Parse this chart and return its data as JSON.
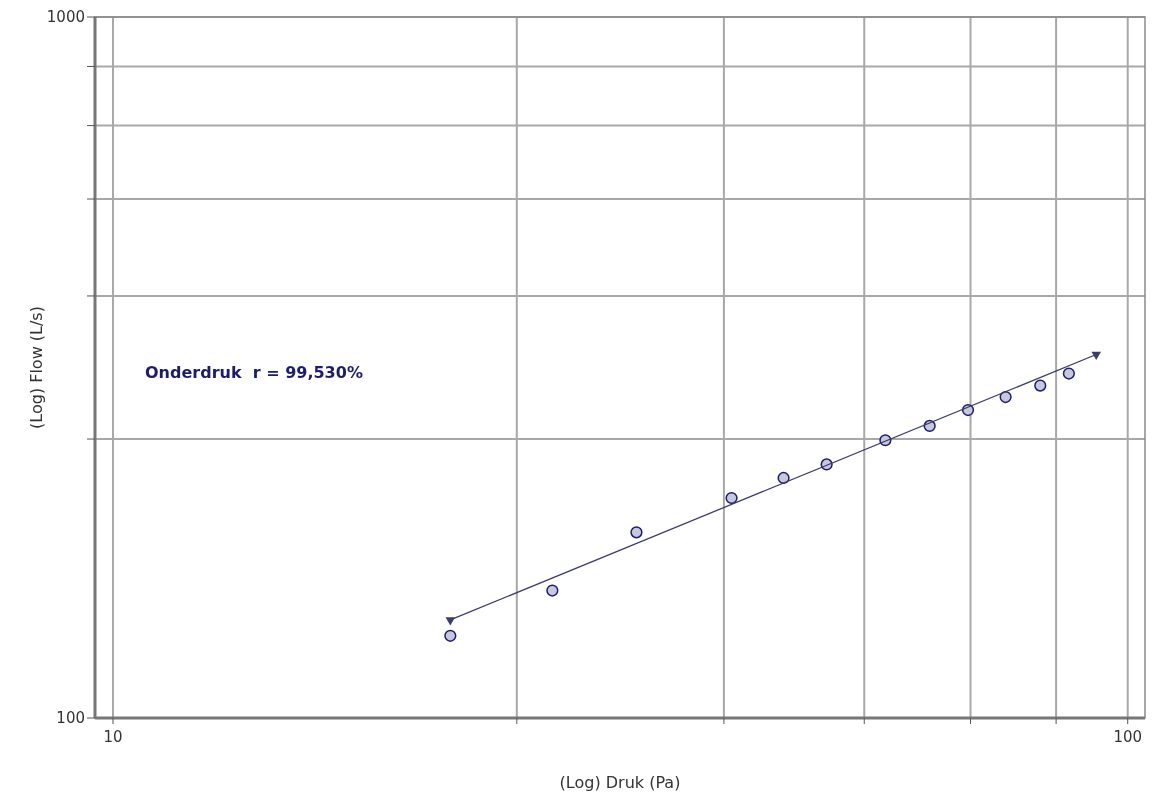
{
  "chart_data": {
    "type": "scatter",
    "xlabel": "(Log) Druk (Pa)",
    "ylabel": "(Log) Flow (L/s)",
    "log": "xy",
    "grid": true,
    "xlim": [
      9.6,
      104
    ],
    "ylim": [
      100,
      1000
    ],
    "xticks": [
      10,
      {
        "value": 25,
        "label": null
      },
      {
        "value": 40,
        "label": null
      },
      {
        "value": 55,
        "label": null
      },
      {
        "value": 70,
        "label": null
      },
      {
        "value": 85,
        "label": null
      },
      100
    ],
    "yticks": [
      100,
      {
        "value": 250,
        "label": null
      },
      {
        "value": 400,
        "label": null
      },
      {
        "value": 550,
        "label": null
      },
      {
        "value": 700,
        "label": null
      },
      {
        "value": 850,
        "label": null
      },
      1000
    ],
    "annotations": [
      "Onderdruk  r = 99,530%"
    ],
    "series": [
      {
        "marker": "circle",
        "color": "#c8c8dc",
        "x": [
          21.5,
          27.1,
          32.8,
          40.7,
          45.8,
          50.5,
          57.7,
          63.8,
          69.6,
          75.8,
          82.0,
          87.5
        ],
        "values": [
          131,
          152,
          184,
          206,
          220,
          230,
          249,
          261,
          275,
          287,
          298,
          310
        ]
      },
      {
        "type": "line",
        "marker": "triangle",
        "color": "#3c3c6a",
        "x": [
          21.5,
          93.1
        ],
        "values": [
          138,
          330
        ]
      }
    ]
  }
}
